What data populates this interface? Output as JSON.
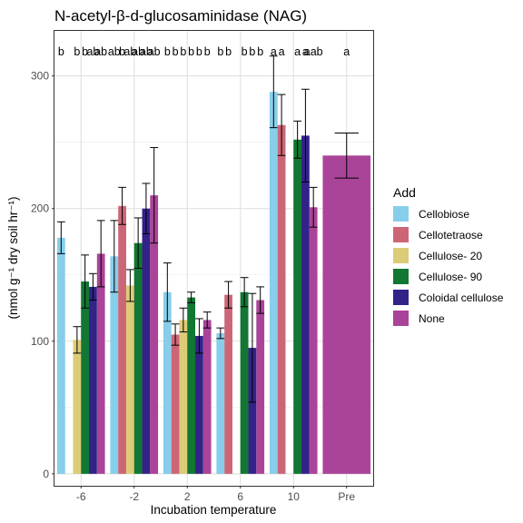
{
  "chart_data": {
    "type": "bar",
    "title": "N-acetyl-β-d-glucosaminidase (NAG)",
    "xlabel": "Incubation temperature",
    "ylabel": "(nmol g⁻¹ dry soil hr⁻¹)",
    "categories": [
      "-6",
      "-2",
      "2",
      "6",
      "10",
      "Pre"
    ],
    "yticks": [
      0,
      100,
      200,
      300
    ],
    "ylim": [
      -9,
      334
    ],
    "grid": true,
    "legend_title": "Add",
    "legend_position": "right",
    "series": [
      {
        "name": "Cellobiose",
        "color": "#87CEEB",
        "values": [
          178,
          164,
          137,
          106,
          288,
          null
        ],
        "err": [
          12,
          27,
          22,
          4,
          27,
          null
        ],
        "letters": [
          "b",
          "ab",
          "b",
          "b",
          "a",
          null
        ]
      },
      {
        "name": "Cellotetraose",
        "color": "#CC6677",
        "values": [
          null,
          202,
          105,
          135,
          263,
          null
        ],
        "err": [
          null,
          14,
          8,
          10,
          23,
          null
        ],
        "letters": [
          null,
          "b",
          "b",
          "b",
          "a",
          null
        ]
      },
      {
        "name": "Cellulose- 20",
        "color": "#DDCC77",
        "values": [
          101,
          142,
          116,
          null,
          null,
          null
        ],
        "err": [
          10,
          12,
          9,
          null,
          null,
          null
        ],
        "letters": [
          "b",
          "ab",
          "b",
          null,
          null,
          null
        ]
      },
      {
        "name": "Cellulose- 90",
        "color": "#117733",
        "values": [
          145,
          174,
          133,
          137,
          252,
          null
        ],
        "err": [
          20,
          19,
          4,
          11,
          14,
          null
        ],
        "letters": [
          "b",
          "ab",
          "b",
          "b",
          "a",
          null
        ]
      },
      {
        "name": "Coloidal cellulose",
        "color": "#332288",
        "values": [
          141,
          200,
          104,
          95,
          255,
          null
        ],
        "err": [
          10,
          19,
          13,
          41,
          35,
          null
        ],
        "letters": [
          "ab",
          "ab",
          "b",
          "b",
          "a",
          null
        ]
      },
      {
        "name": "None",
        "color": "#AA4499",
        "values": [
          166,
          210,
          116,
          131,
          201,
          240
        ],
        "err": [
          25,
          36,
          6,
          10,
          15,
          17
        ],
        "letters": [
          "ab",
          "ab",
          "b",
          "b",
          "aab",
          "a"
        ]
      }
    ]
  }
}
